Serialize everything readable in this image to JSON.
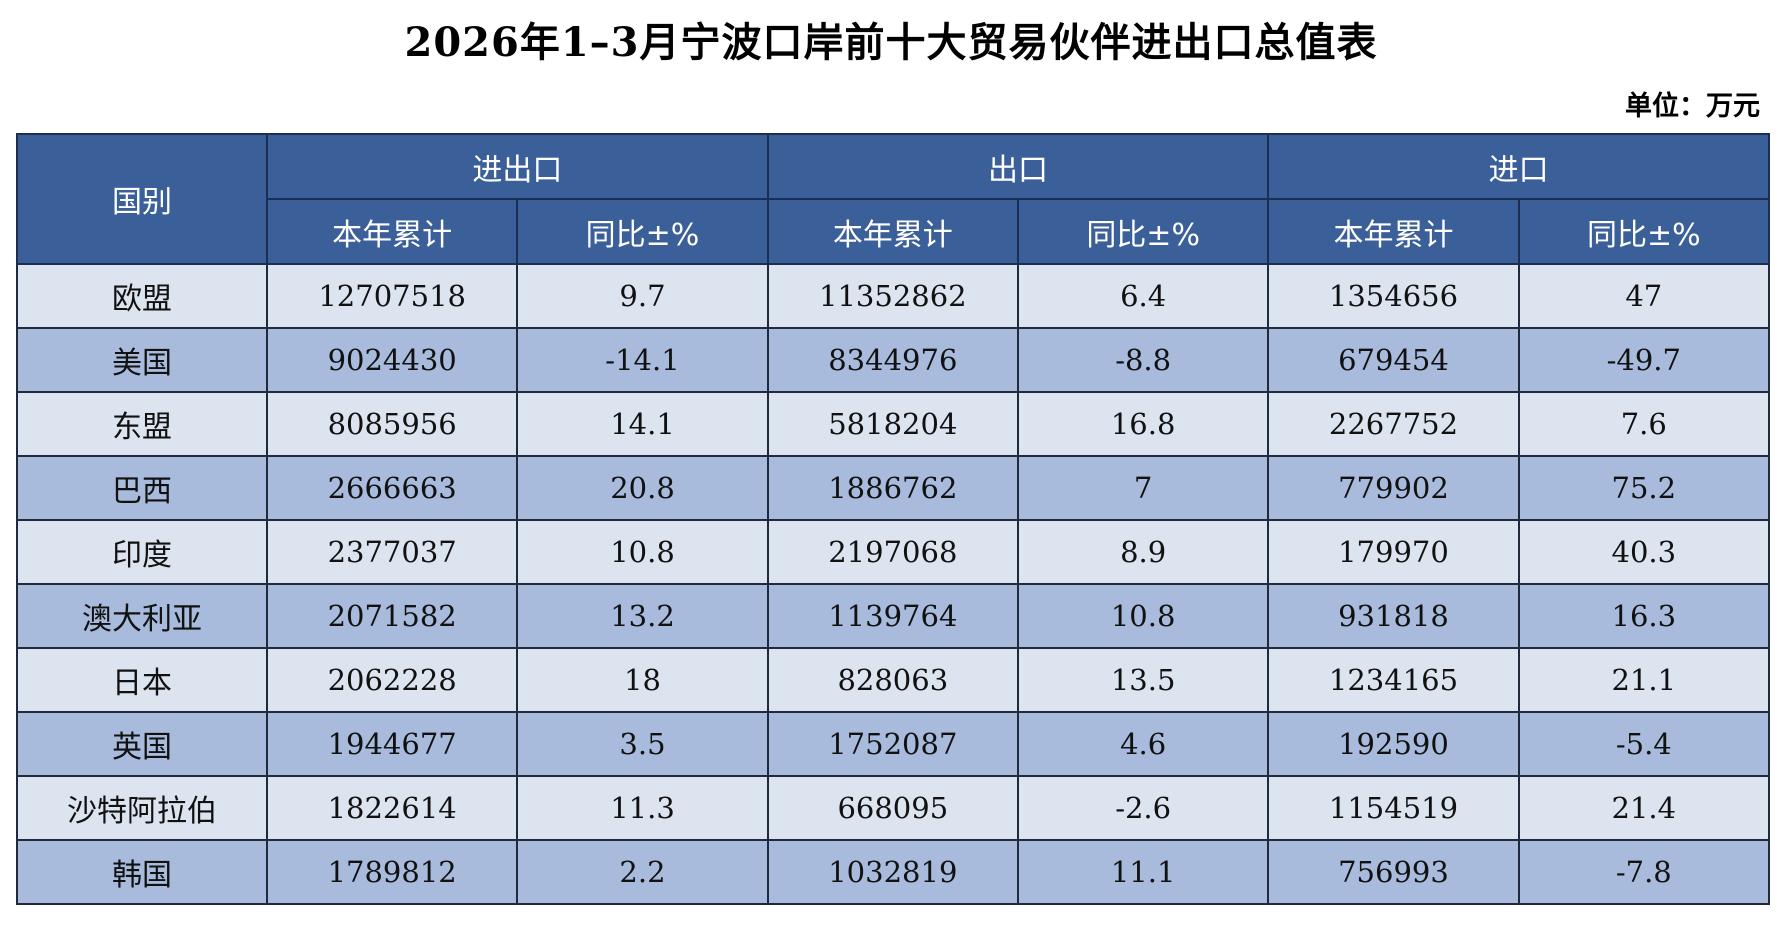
{
  "title": "2026年1–3月宁波口岸前十大贸易伙伴进出口总值表",
  "unit": "单位：万元",
  "header": {
    "country": "国别",
    "groups": [
      "进出口",
      "出口",
      "进口"
    ],
    "sub": [
      "本年累计",
      "同比±%",
      "本年累计",
      "同比±%",
      "本年累计",
      "同比±%"
    ]
  },
  "rows": [
    {
      "country": "欧盟",
      "values": [
        "12707518",
        "9.7",
        "11352862",
        "6.4",
        "1354656",
        "47"
      ]
    },
    {
      "country": "美国",
      "values": [
        "9024430",
        "-14.1",
        "8344976",
        "-8.8",
        "679454",
        "-49.7"
      ]
    },
    {
      "country": "东盟",
      "values": [
        "8085956",
        "14.1",
        "5818204",
        "16.8",
        "2267752",
        "7.6"
      ]
    },
    {
      "country": "巴西",
      "values": [
        "2666663",
        "20.8",
        "1886762",
        "7",
        "779902",
        "75.2"
      ]
    },
    {
      "country": "印度",
      "values": [
        "2377037",
        "10.8",
        "2197068",
        "8.9",
        "179970",
        "40.3"
      ]
    },
    {
      "country": "澳大利亚",
      "values": [
        "2071582",
        "13.2",
        "1139764",
        "10.8",
        "931818",
        "16.3"
      ]
    },
    {
      "country": "日本",
      "values": [
        "2062228",
        "18",
        "828063",
        "13.5",
        "1234165",
        "21.1"
      ]
    },
    {
      "country": "英国",
      "values": [
        "1944677",
        "3.5",
        "1752087",
        "4.6",
        "192590",
        "-5.4"
      ]
    },
    {
      "country": "沙特阿拉伯",
      "values": [
        "1822614",
        "11.3",
        "668095",
        "-2.6",
        "1154519",
        "21.4"
      ]
    },
    {
      "country": "韩国",
      "values": [
        "1789812",
        "2.2",
        "1032819",
        "11.1",
        "756993",
        "-7.8"
      ]
    }
  ],
  "colors": {
    "header_bg": "#3b5f99",
    "row_light": "#dce4f0",
    "row_dark": "#a8bbdc"
  }
}
